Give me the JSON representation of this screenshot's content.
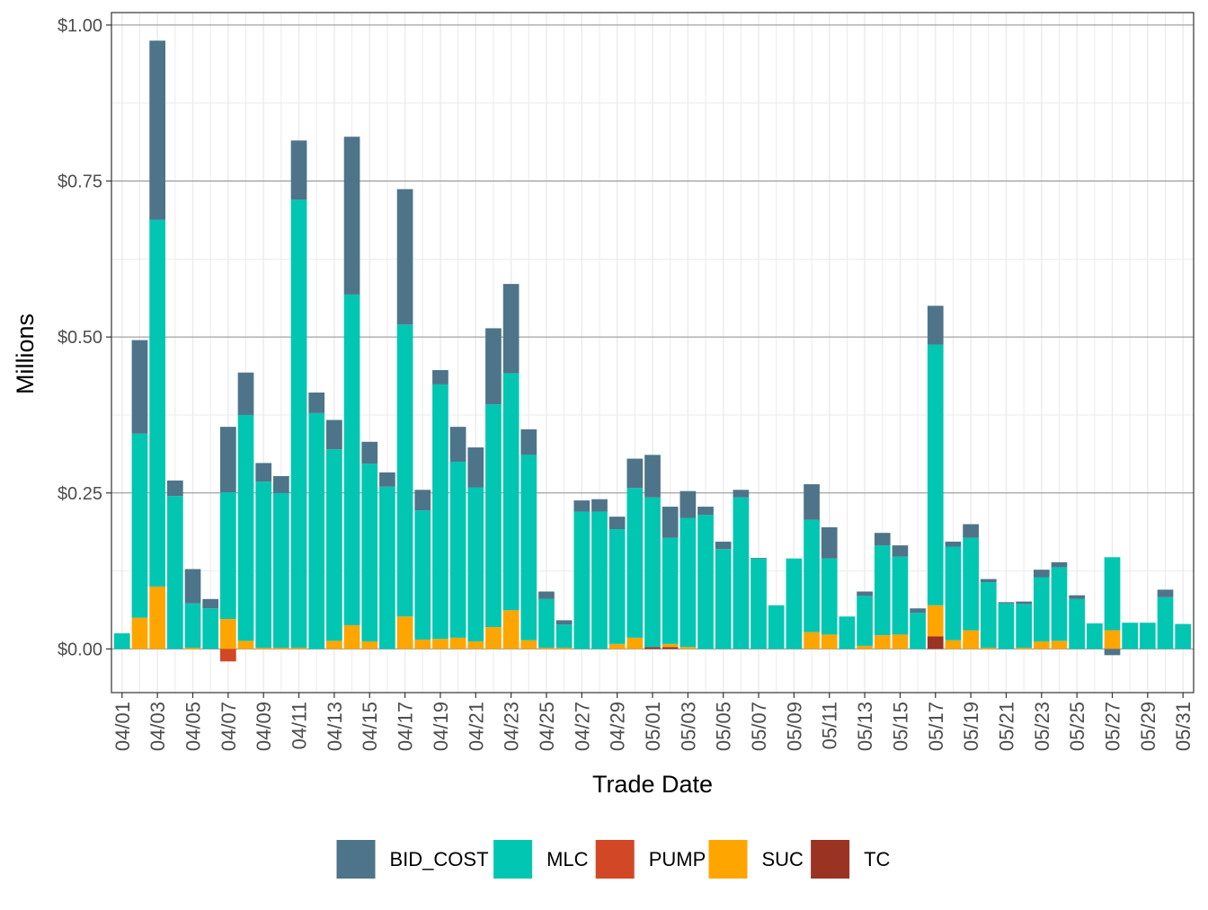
{
  "chart_data": {
    "type": "bar",
    "stacked": true,
    "title": "",
    "xlabel": "Trade Date",
    "ylabel": "Millions",
    "ylim": [
      -0.07,
      1.02
    ],
    "yticks": [
      0,
      0.25,
      0.5,
      0.75,
      1.0
    ],
    "ytick_labels": [
      "$0.00",
      "$0.25",
      "$0.50",
      "$0.75",
      "$1.00"
    ],
    "xtick_labels": [
      "04/01",
      "04/03",
      "04/05",
      "04/07",
      "04/09",
      "04/11",
      "04/13",
      "04/15",
      "04/17",
      "04/19",
      "04/21",
      "04/23",
      "04/25",
      "04/27",
      "04/29",
      "05/01",
      "05/03",
      "05/05",
      "05/07",
      "05/09",
      "05/11",
      "05/13",
      "05/15",
      "05/17",
      "05/19",
      "05/21",
      "05/23",
      "05/25",
      "05/27",
      "05/29",
      "05/31"
    ],
    "grid": true,
    "legend_position": "bottom",
    "categories": [
      "04/01",
      "04/02",
      "04/03",
      "04/04",
      "04/05",
      "04/06",
      "04/07",
      "04/08",
      "04/09",
      "04/10",
      "04/11",
      "04/12",
      "04/13",
      "04/14",
      "04/15",
      "04/16",
      "04/17",
      "04/18",
      "04/19",
      "04/20",
      "04/21",
      "04/22",
      "04/23",
      "04/24",
      "04/25",
      "04/26",
      "04/27",
      "04/28",
      "04/29",
      "04/30",
      "05/01",
      "05/02",
      "05/03",
      "05/04",
      "05/05",
      "05/06",
      "05/07",
      "05/08",
      "05/09",
      "05/10",
      "05/11",
      "05/12",
      "05/13",
      "05/14",
      "05/15",
      "05/16",
      "05/17",
      "05/18",
      "05/19",
      "05/20",
      "05/21",
      "05/22",
      "05/23",
      "05/24",
      "05/25",
      "05/26",
      "05/27",
      "05/28",
      "05/29",
      "05/30",
      "05/31"
    ],
    "series": [
      {
        "name": "TC",
        "color": "#9A3322",
        "values": [
          0,
          0,
          0,
          0,
          0,
          0,
          0,
          0,
          0,
          0,
          0,
          0,
          0,
          0,
          0,
          0,
          0,
          0,
          0,
          0,
          0,
          0,
          0,
          0,
          0,
          0,
          0,
          0,
          0,
          0,
          0.003,
          0.003,
          0,
          0,
          0,
          0,
          0,
          0,
          0,
          0,
          0,
          0,
          0,
          0,
          0,
          0,
          0.02,
          0,
          0,
          0,
          0,
          0,
          0,
          0,
          0,
          0,
          0,
          0,
          0,
          0,
          0
        ]
      },
      {
        "name": "SUC",
        "color": "#FFA500",
        "values": [
          0,
          0.05,
          0.1,
          0,
          0.002,
          0,
          0.048,
          0.013,
          0.002,
          0.002,
          0.002,
          0,
          0.013,
          0.038,
          0.012,
          0,
          0.052,
          0.015,
          0.016,
          0.018,
          0.012,
          0.035,
          0.062,
          0.014,
          0.002,
          0.002,
          0,
          0,
          0.008,
          0.018,
          0,
          0.005,
          0.003,
          0,
          0,
          0,
          0,
          0,
          0,
          0.027,
          0.023,
          0,
          0.005,
          0.022,
          0.023,
          0,
          0.05,
          0.014,
          0.03,
          0.002,
          0,
          0.002,
          0.012,
          0.013,
          0,
          0,
          0.03,
          0,
          0,
          0,
          0
        ]
      },
      {
        "name": "PUMP",
        "color": "#D24725",
        "values": [
          0,
          0,
          0,
          0,
          0,
          0,
          -0.02,
          0,
          0,
          0,
          0,
          0,
          0,
          0,
          0,
          0,
          0,
          0,
          0,
          0,
          0,
          0,
          0,
          0,
          0,
          0,
          0,
          0,
          0,
          0,
          0,
          0,
          0,
          0,
          0,
          0,
          0,
          0,
          0,
          0,
          0,
          0,
          0,
          0,
          0,
          0,
          0,
          0,
          0,
          0,
          0,
          0,
          0,
          0,
          0,
          0,
          0,
          0,
          0,
          0,
          0
        ]
      },
      {
        "name": "MLC",
        "color": "#00C6B2",
        "values": [
          0.025,
          0.295,
          0.588,
          0.245,
          0.071,
          0.065,
          0.203,
          0.362,
          0.266,
          0.248,
          0.718,
          0.378,
          0.307,
          0.53,
          0.285,
          0.26,
          0.468,
          0.207,
          0.408,
          0.282,
          0.247,
          0.357,
          0.38,
          0.297,
          0.078,
          0.037,
          0.22,
          0.22,
          0.184,
          0.24,
          0.24,
          0.17,
          0.207,
          0.215,
          0.16,
          0.243,
          0.145,
          0.07,
          0.145,
          0.18,
          0.122,
          0.052,
          0.08,
          0.144,
          0.125,
          0.058,
          0.418,
          0.15,
          0.148,
          0.105,
          0.073,
          0.07,
          0.103,
          0.118,
          0.08,
          0.041,
          0.117,
          0.042,
          0.042,
          0.083,
          0.04
        ]
      },
      {
        "name": "BID_COST",
        "color": "#4E7489",
        "values": [
          0,
          0.15,
          0.287,
          0.025,
          0.055,
          0.015,
          0.105,
          0.068,
          0.03,
          0.027,
          0.095,
          0.033,
          0.047,
          0.253,
          0.035,
          0.023,
          0.217,
          0.033,
          0.023,
          0.056,
          0.064,
          0.122,
          0.143,
          0.041,
          0.012,
          0.007,
          0.018,
          0.02,
          0.02,
          0.047,
          0.068,
          0.05,
          0.043,
          0.013,
          0.012,
          0.012,
          0.001,
          0,
          0,
          0.057,
          0.05,
          0,
          0.007,
          0.02,
          0.018,
          0.007,
          0.062,
          0.008,
          0.022,
          0.005,
          0.002,
          0.004,
          0.012,
          0.008,
          0.006,
          0,
          -0.01,
          0,
          0,
          0.012,
          0
        ]
      }
    ],
    "legend_order": [
      "BID_COST",
      "MLC",
      "PUMP",
      "SUC",
      "TC"
    ]
  }
}
